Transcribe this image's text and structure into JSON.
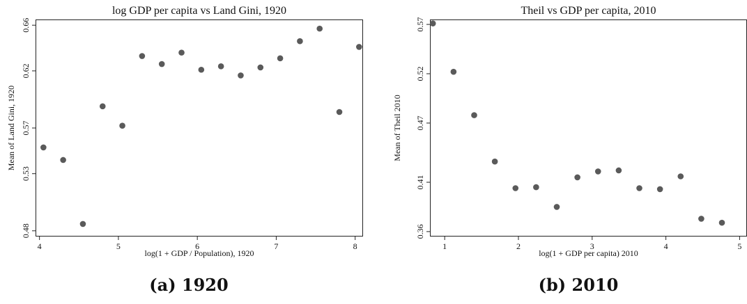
{
  "chart_data": [
    {
      "type": "scatter",
      "title": "log GDP per capita vs Land Gini, 1920",
      "xlabel": "log(1 + GDP / Population), 1920",
      "ylabel": "Mean of Land Gini, 1920",
      "xlim": [
        3.95,
        8.1
      ],
      "ylim": [
        0.475,
        0.665
      ],
      "xticks": [
        4,
        5,
        6,
        7,
        8
      ],
      "yticks": [
        0.48,
        0.53,
        0.57,
        0.62,
        0.66
      ],
      "ytick_labels": [
        "0.48",
        "0.53",
        "0.57",
        "0.62",
        "0.66"
      ],
      "grid": false,
      "marker_color": "#5a5a5a",
      "series": [
        {
          "x": [
            4.05,
            4.3,
            4.55,
            4.8,
            5.05,
            5.3,
            5.55,
            5.8,
            6.05,
            6.3,
            6.55,
            6.8,
            7.05,
            7.3,
            7.55,
            7.8,
            8.05
          ],
          "y": [
            0.553,
            0.542,
            0.486,
            0.589,
            0.572,
            0.633,
            0.626,
            0.636,
            0.621,
            0.624,
            0.616,
            0.623,
            0.631,
            0.646,
            0.657,
            0.584,
            0.641
          ]
        }
      ]
    },
    {
      "type": "scatter",
      "title": "Theil vs GDP per capita, 2010",
      "xlabel": "log(1 + GDP per capita) 2010",
      "ylabel": "Mean of Theil 2010",
      "xlim": [
        0.8,
        5.1
      ],
      "ylim": [
        0.355,
        0.575
      ],
      "xticks": [
        1,
        2,
        3,
        4,
        5
      ],
      "yticks": [
        0.36,
        0.41,
        0.47,
        0.52,
        0.57
      ],
      "ytick_labels": [
        "0.36",
        "0.41",
        "0.47",
        "0.52",
        "0.57"
      ],
      "grid": false,
      "marker_color": "#5a5a5a",
      "series": [
        {
          "x": [
            0.84,
            1.12,
            1.4,
            1.68,
            1.96,
            2.24,
            2.52,
            2.8,
            3.08,
            3.36,
            3.64,
            3.92,
            4.2,
            4.48,
            4.76
          ],
          "y": [
            0.571,
            0.522,
            0.478,
            0.431,
            0.404,
            0.405,
            0.385,
            0.415,
            0.421,
            0.422,
            0.404,
            0.403,
            0.416,
            0.373,
            0.369
          ]
        }
      ]
    }
  ],
  "captions": {
    "a": "(a) 1920",
    "b": "(b) 2010"
  }
}
